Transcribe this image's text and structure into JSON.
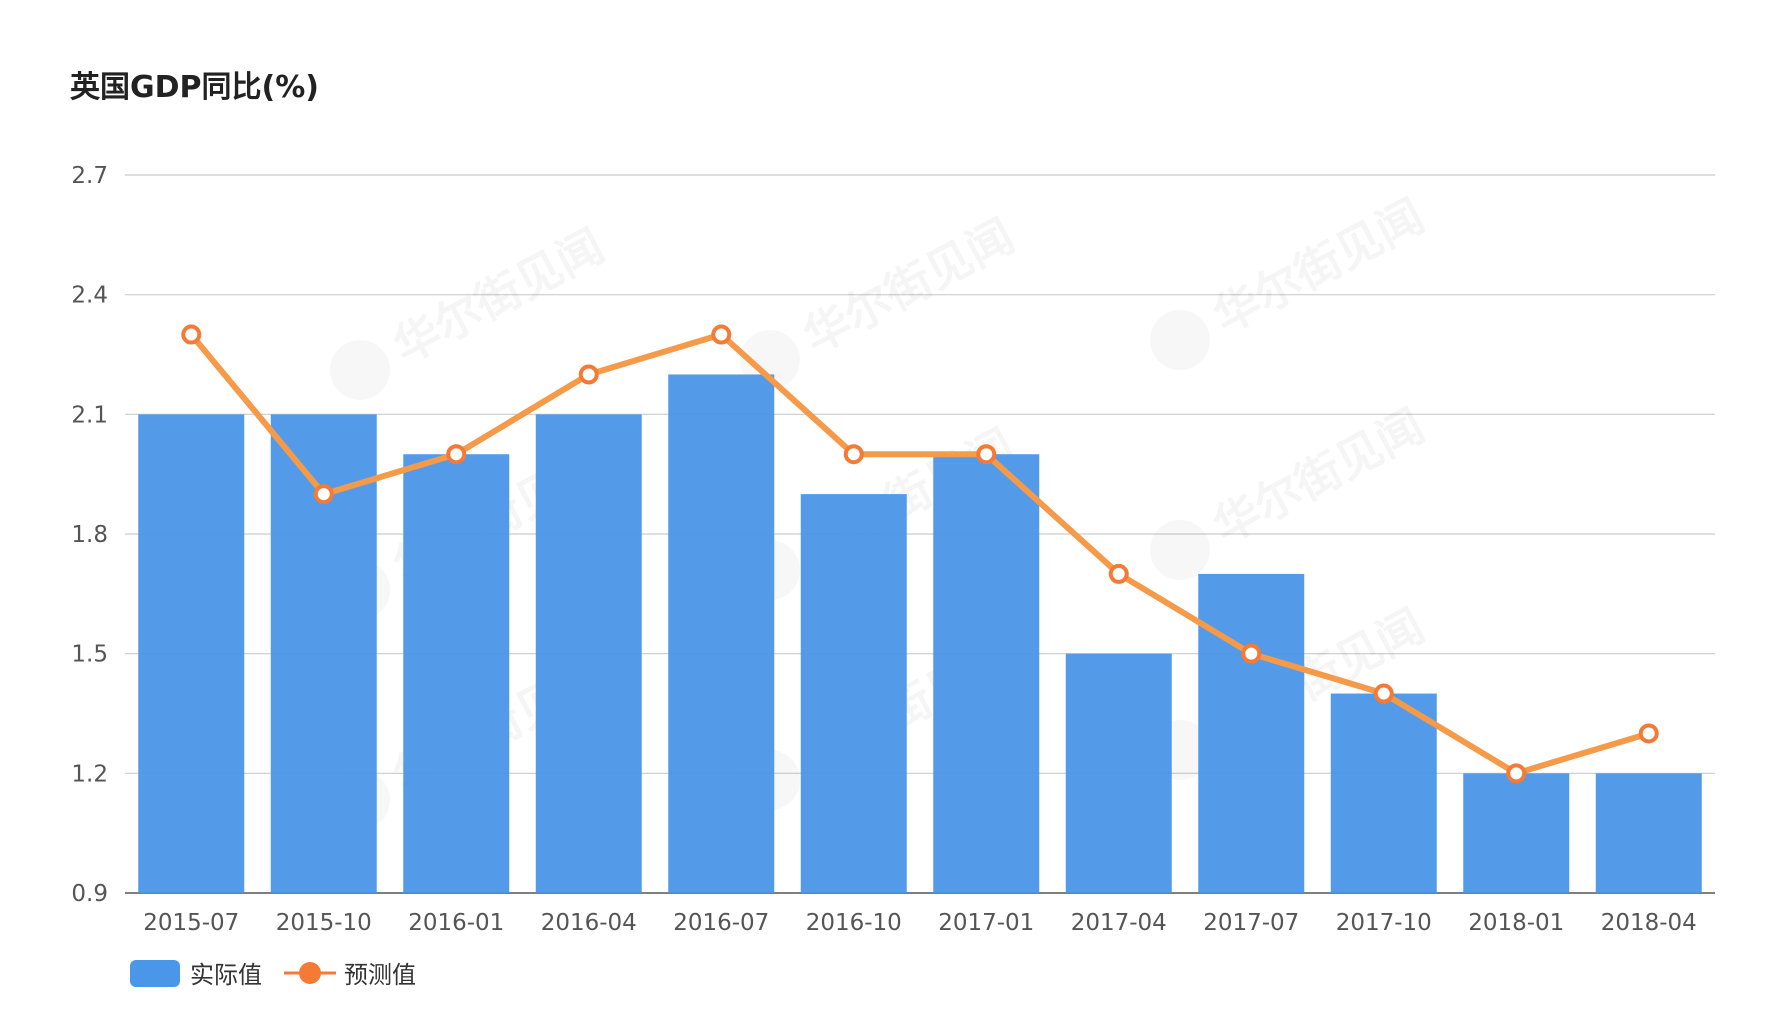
{
  "chart_data": {
    "type": "bar",
    "title": "英国GDP同比(%)",
    "categories": [
      "2015-07",
      "2015-10",
      "2016-01",
      "2016-04",
      "2016-07",
      "2016-10",
      "2017-01",
      "2017-04",
      "2017-07",
      "2017-10",
      "2018-01",
      "2018-04"
    ],
    "series": [
      {
        "name": "实际值",
        "type": "bar",
        "color": "#4a96e8",
        "values": [
          2.1,
          2.1,
          2.0,
          2.1,
          2.2,
          1.9,
          2.0,
          1.5,
          1.7,
          1.4,
          1.2,
          1.2
        ]
      },
      {
        "name": "预测值",
        "type": "line",
        "color": "#f59a48",
        "marker_color": "#f47a35",
        "values": [
          2.3,
          1.9,
          2.0,
          2.2,
          2.3,
          2.0,
          2.0,
          1.7,
          1.5,
          1.4,
          1.2,
          1.3
        ]
      }
    ],
    "ylim": [
      0.9,
      2.7
    ],
    "yticks": [
      "0.9",
      "1.2",
      "1.5",
      "1.8",
      "2.1",
      "2.4",
      "2.7"
    ],
    "xlabel": "",
    "ylabel": "",
    "grid": true,
    "legend_position": "bottom-left"
  },
  "watermark": {
    "text": "华尔街见闻"
  }
}
